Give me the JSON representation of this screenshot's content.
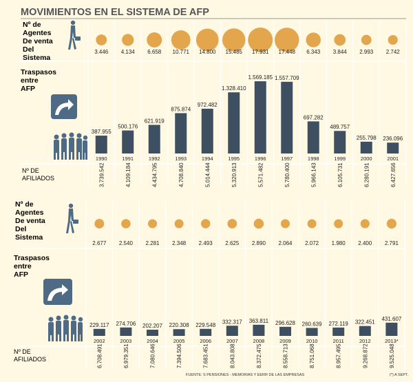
{
  "title": "MOVIMIENTOS EN EL SISTEMA DE AFP",
  "labels": {
    "agentes": [
      "Nº de",
      "Agentes",
      "De venta",
      "Del",
      "Sistema"
    ],
    "traspasos": [
      "Traspasos",
      "entre",
      "AFP"
    ],
    "afiliados": [
      "Nº DE",
      "AFILIADOS"
    ]
  },
  "footer": {
    "source": "FUENTE: S PENSIONES - MEMORIAS Y EERR DE LAS EMPRESAS",
    "note": "(*) A SEPT."
  },
  "colors": {
    "background": "#fff8e3",
    "bar": "#3d4f61",
    "circle": "#e3a64d",
    "icon": "#4f6a85",
    "grid": "#ffffff"
  },
  "chart_data": [
    {
      "type": "bar",
      "title": "Traspasos entre AFP (1990-2001)",
      "categories": [
        "1990",
        "1991",
        "1992",
        "1993",
        "1994",
        "1995",
        "1996",
        "1997",
        "1998",
        "1999",
        "2000",
        "2001"
      ],
      "values": [
        387955,
        500176,
        621919,
        875874,
        972482,
        1328410,
        1569185,
        1557709,
        697282,
        489757,
        255798,
        236096
      ],
      "value_labels": [
        "387.955",
        "500.176",
        "621.919",
        "875.874",
        "972.482",
        "1.328.410",
        "1.569.185",
        "1.557.709",
        "697.282",
        "489.757",
        "255.798",
        "236.096"
      ],
      "agentes": [
        3446,
        4134,
        6658,
        10771,
        14800,
        15485,
        17931,
        17448,
        6343,
        3844,
        2993,
        2742
      ],
      "agentes_labels": [
        "3.446",
        "4.134",
        "6.658",
        "10.771",
        "14.800",
        "15.485",
        "17.931",
        "17.448",
        "6.343",
        "3.844",
        "2.993",
        "2.742"
      ],
      "afiliados": [
        3739542,
        4109184,
        4434795,
        4708840,
        5014444,
        5320913,
        5571482,
        5780400,
        5966143,
        6105731,
        6280191,
        6427656
      ],
      "afiliados_labels": [
        "3.739.542",
        "4.109.184",
        "4.434.795",
        "4.708.840",
        "5.014.444",
        "5.320.913",
        "5.571.482",
        "5.780.400",
        "5.966.143",
        "6.105.731",
        "6.280.191",
        "6.427.656"
      ],
      "ylim": [
        0,
        1600000
      ]
    },
    {
      "type": "bar",
      "title": "Traspasos entre AFP (2002-2013)",
      "categories": [
        "2002",
        "2003",
        "2004",
        "2005",
        "2006",
        "2007",
        "2008",
        "2009",
        "2010",
        "2011",
        "2012",
        "2013*"
      ],
      "values": [
        229117,
        274706,
        202207,
        220308,
        229548,
        332317,
        363811,
        296628,
        260639,
        272119,
        322451,
        431607
      ],
      "value_labels": [
        "229.117",
        "274.706",
        "202.207",
        "220.308",
        "229.548",
        "332.317",
        "363.811",
        "296.628",
        "260.639",
        "272.119",
        "322.451",
        "431.607"
      ],
      "agentes": [
        2677,
        2540,
        2281,
        2348,
        2493,
        2625,
        2890,
        2064,
        2072,
        1980,
        2400,
        2791
      ],
      "agentes_labels": [
        "2.677",
        "2.540",
        "2.281",
        "2.348",
        "2.493",
        "2.625",
        "2.890",
        "2.064",
        "2.072",
        "1.980",
        "2.400",
        "2.791"
      ],
      "afiliados": [
        6708491,
        6979351,
        7080646,
        7394506,
        7683451,
        8043808,
        8372475,
        8558713,
        8751068,
        8957495,
        9268872,
        9525048
      ],
      "afiliados_labels": [
        "6.708.491",
        "6.979.351",
        "7.080.646",
        "7.394.506",
        "7.683.451",
        "8.043.808",
        "8.372.475",
        "8.558.713",
        "8.751.068",
        "8.957.495",
        "9.268.872",
        "9.525.048"
      ],
      "ylim": [
        0,
        1600000
      ]
    }
  ]
}
